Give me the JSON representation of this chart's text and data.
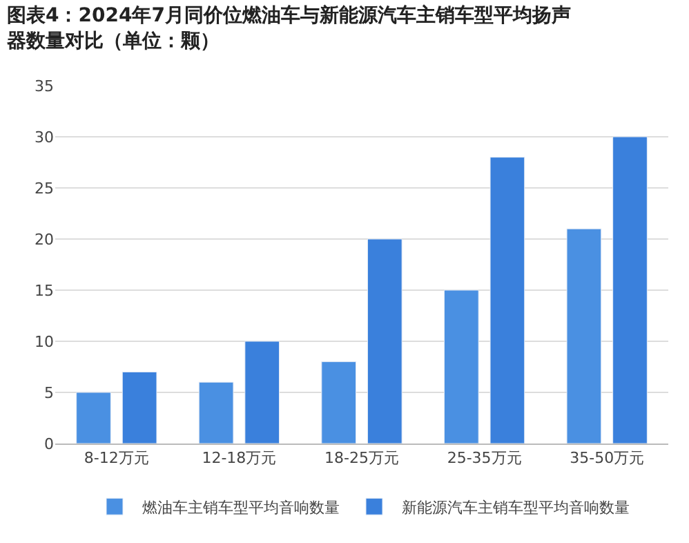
{
  "chart_data": {
    "type": "bar",
    "title": "图表4：2024年7月同价位燃油车与新能源汽车主销车型平均扬声器数量对比（单位：颗）",
    "categories": [
      "8-12万元",
      "12-18万元",
      "18-25万元",
      "25-35万元",
      "35-50万元"
    ],
    "series": [
      {
        "name": "燃油车主销车型平均音响数量",
        "color": "#4a90e2",
        "values": [
          5,
          6,
          8,
          15,
          21
        ]
      },
      {
        "name": "新能源汽车主销车型平均音响数量",
        "color": "#3a80dc",
        "values": [
          7,
          10,
          20,
          28,
          30
        ]
      }
    ],
    "ylim": [
      0,
      35
    ],
    "yticks": [
      0,
      5,
      10,
      15,
      20,
      25,
      30,
      35
    ],
    "grid": "y",
    "legend": "bottom"
  }
}
